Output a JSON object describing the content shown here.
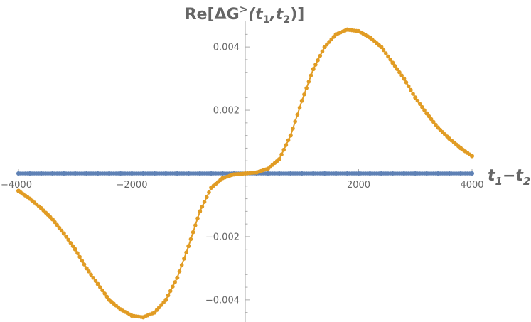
{
  "chart_data": {
    "type": "scatter",
    "title": "Re[ΔG>(t1,t2)]",
    "title_parts": {
      "main": "Re[ΔG",
      "sup": ">",
      "open": "(t",
      "sub1": "1",
      "comma": ",t",
      "sub2": "2",
      "close": ")]"
    },
    "xlabel": "t1−t2",
    "xlabel_parts": {
      "t": "t",
      "sub1": "1",
      "minus": "−t",
      "sub2": "2"
    },
    "ylabel": "",
    "xlim": [
      -4000,
      4000
    ],
    "ylim": [
      -0.0047,
      0.0047
    ],
    "x_ticks": [
      {
        "value": -4000,
        "label": "−4000"
      },
      {
        "value": -2000,
        "label": "−2000"
      },
      {
        "value": 2000,
        "label": "2000"
      },
      {
        "value": 4000,
        "label": "4000"
      }
    ],
    "y_ticks": [
      {
        "value": 0.004,
        "label": "0.004"
      },
      {
        "value": 0.002,
        "label": "0.002"
      },
      {
        "value": -0.002,
        "label": "−0.002"
      },
      {
        "value": -0.004,
        "label": "−0.004"
      }
    ],
    "grid": false,
    "legend": "none",
    "series": [
      {
        "color": "#5e81b5",
        "x": [
          -4000,
          -3800,
          -3600,
          -3400,
          -3200,
          -3000,
          -2800,
          -2600,
          -2400,
          -2200,
          -2000,
          -1800,
          -1600,
          -1400,
          -1200,
          -1000,
          -800,
          -600,
          -400,
          -200,
          0,
          200,
          400,
          600,
          800,
          1000,
          1200,
          1400,
          1600,
          1800,
          2000,
          2200,
          2400,
          2600,
          2800,
          3000,
          3200,
          3400,
          3600,
          3800,
          4000
        ],
        "y": [
          0,
          0,
          0,
          0,
          0,
          0,
          0,
          0,
          0,
          0,
          0,
          0,
          0,
          0,
          0,
          0,
          0,
          0,
          0,
          0,
          0,
          0,
          0,
          0,
          0,
          0,
          0,
          0,
          0,
          0,
          0,
          0,
          0,
          0,
          0,
          0,
          0,
          0,
          0,
          0,
          0
        ]
      },
      {
        "color": "#e19c24",
        "x": [
          -4000,
          -3800,
          -3600,
          -3400,
          -3200,
          -3000,
          -2800,
          -2600,
          -2400,
          -2200,
          -2000,
          -1800,
          -1600,
          -1400,
          -1200,
          -1000,
          -800,
          -600,
          -400,
          -200,
          0,
          200,
          400,
          600,
          800,
          1000,
          1200,
          1400,
          1600,
          1800,
          2000,
          2200,
          2400,
          2600,
          2800,
          3000,
          3200,
          3400,
          3600,
          3800,
          4000
        ],
        "y": [
          -0.00055,
          -0.0008,
          -0.0011,
          -0.00145,
          -0.0019,
          -0.0024,
          -0.003,
          -0.0035,
          -0.004,
          -0.0043,
          -0.0045,
          -0.00455,
          -0.0044,
          -0.004,
          -0.0033,
          -0.0023,
          -0.0012,
          -0.00045,
          -0.00015,
          -3e-05,
          0,
          3e-05,
          0.00015,
          0.00045,
          0.0012,
          0.0023,
          0.0033,
          0.004,
          0.0044,
          0.00455,
          0.0045,
          0.0043,
          0.004,
          0.0035,
          0.003,
          0.0024,
          0.0019,
          0.00145,
          0.0011,
          0.0008,
          0.00055
        ]
      }
    ]
  }
}
